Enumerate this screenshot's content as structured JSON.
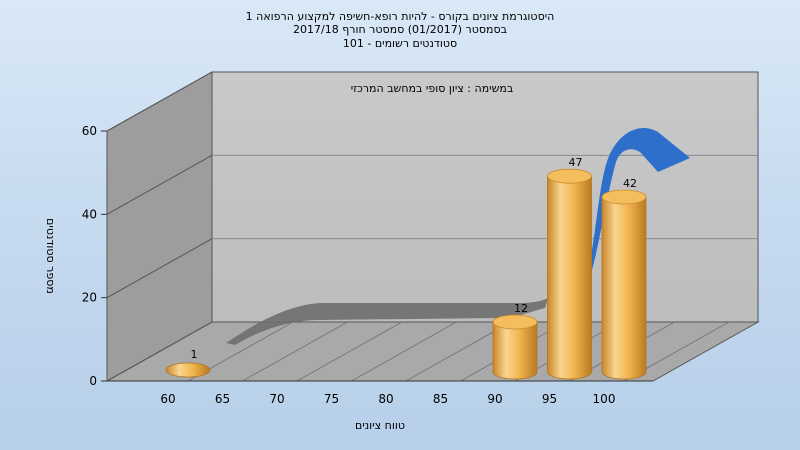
{
  "chart_data": {
    "type": "bar",
    "title": [
      "היסטוגרמת ציונים בקורס - להיות רופא-חשיפה למקצוע הרפואה 1",
      "בסמסטר  (01/2017)  סמסטר חורף 2017/18",
      "סטודנטים רשומים - 101"
    ],
    "subtitle": "במשימה : ציון סופי במחשב המרכזי",
    "xlabel": "טווח ציונים",
    "ylabel": "מספר סטודנטים",
    "categories": [
      "60",
      "65",
      "70",
      "75",
      "80",
      "85",
      "90",
      "95",
      "100"
    ],
    "values": [
      1,
      0,
      0,
      0,
      0,
      0,
      12,
      47,
      42
    ],
    "data_labels": [
      "1",
      "",
      "",
      "",
      "",
      "",
      "12",
      "47",
      "42"
    ],
    "yticks": [
      "0",
      "20",
      "40",
      "60"
    ],
    "ylim": [
      0,
      60
    ],
    "grid": true,
    "colors": {
      "bar": "#f2b54f",
      "curve_back": "#6e6e6e",
      "curve_front": "#2f6fcc",
      "wall": "#c3c3c3",
      "side_wall": "#9a9a9a",
      "floor": "#a8a8a8"
    }
  }
}
